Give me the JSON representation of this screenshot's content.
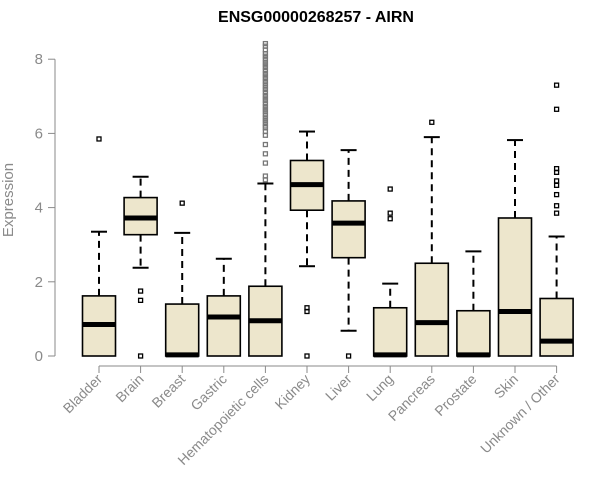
{
  "chart_data": {
    "type": "box",
    "title": "ENSG00000268257 - AIRN",
    "ylabel": "Expression",
    "xlabel": "",
    "ylim": [
      0,
      8.5
    ],
    "yticks": [
      0,
      2,
      4,
      6,
      8
    ],
    "colors": {
      "box_fill": "#ede6cc",
      "box_stroke": "#000000",
      "axis": "#8a8a8a",
      "outlier": "#000000",
      "dense_outlier": "#777777"
    },
    "categories": [
      "Bladder",
      "Brain",
      "Breast",
      "Gastric",
      "Hematopoietic cells",
      "Kidney",
      "Liver",
      "Lung",
      "Pancreas",
      "Prostate",
      "Skin",
      "Unknown / Other"
    ],
    "boxes": [
      {
        "min": 0,
        "q1": 0,
        "median": 0.85,
        "q3": 1.62,
        "max": 3.35,
        "outliers": [
          5.85
        ]
      },
      {
        "min": 2.38,
        "q1": 3.27,
        "median": 3.72,
        "q3": 4.27,
        "max": 4.83,
        "outliers": [
          1.75,
          1.5,
          0
        ]
      },
      {
        "min": 0,
        "q1": 0,
        "median": 0.03,
        "q3": 1.4,
        "max": 3.32,
        "outliers": [
          4.12
        ]
      },
      {
        "min": 0,
        "q1": 0,
        "median": 1.05,
        "q3": 1.62,
        "max": 2.62,
        "outliers": []
      },
      {
        "min": 0,
        "q1": 0,
        "median": 0.95,
        "q3": 1.88,
        "max": 4.65,
        "outliers": [
          4.75,
          4.85,
          5.2,
          5.45,
          5.7,
          5.95,
          6.05,
          6.15,
          6.2,
          6.28,
          6.35,
          6.42,
          6.5,
          6.58,
          6.65,
          6.72,
          6.8,
          6.88,
          6.95,
          7.02,
          7.1,
          7.18,
          7.25,
          7.33,
          7.4,
          7.48,
          7.55,
          7.62,
          7.7,
          7.78,
          7.85,
          7.92,
          8.0,
          8.08,
          8.15,
          8.25,
          8.35,
          8.42
        ]
      },
      {
        "min": 2.42,
        "q1": 3.93,
        "median": 4.62,
        "q3": 5.27,
        "max": 6.05,
        "outliers": [
          1.3,
          1.2,
          0
        ]
      },
      {
        "min": 0.68,
        "q1": 2.65,
        "median": 3.58,
        "q3": 4.18,
        "max": 5.55,
        "outliers": [
          0
        ]
      },
      {
        "min": 0,
        "q1": 0,
        "median": 0.03,
        "q3": 1.3,
        "max": 1.95,
        "outliers": [
          4.5,
          3.85,
          3.7
        ]
      },
      {
        "min": 0,
        "q1": 0,
        "median": 0.9,
        "q3": 2.5,
        "max": 5.9,
        "outliers": [
          6.3
        ]
      },
      {
        "min": 0,
        "q1": 0,
        "median": 0.03,
        "q3": 1.22,
        "max": 2.82,
        "outliers": []
      },
      {
        "min": 0,
        "q1": 0,
        "median": 1.2,
        "q3": 3.72,
        "max": 5.82,
        "outliers": []
      },
      {
        "min": 0,
        "q1": 0,
        "median": 0.4,
        "q3": 1.55,
        "max": 3.22,
        "outliers": [
          3.85,
          4.05,
          4.35,
          4.6,
          4.72,
          4.95,
          5.05,
          6.65,
          7.3
        ]
      }
    ]
  }
}
